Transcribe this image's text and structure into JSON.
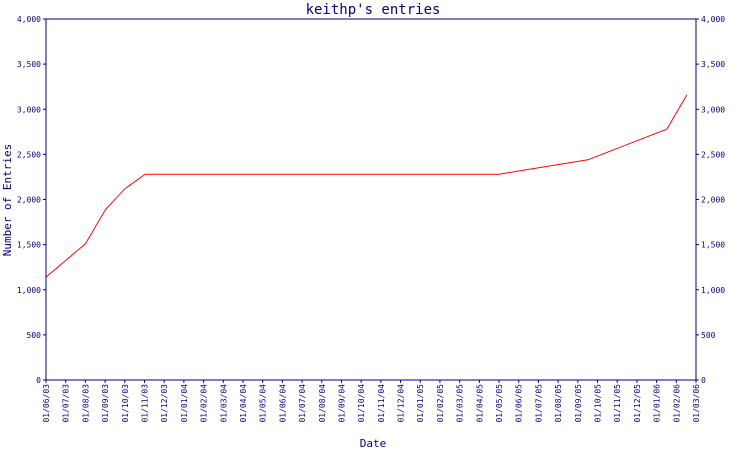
{
  "chart_data": {
    "type": "line",
    "title": "keithp's entries",
    "xlabel": "Date",
    "ylabel": "Number of Entries",
    "ylim": [
      0,
      4000
    ],
    "y_ticks": [
      0,
      500,
      1000,
      1500,
      2000,
      2500,
      3000,
      3500,
      4000
    ],
    "y_tick_labels": [
      "0",
      "500",
      "1,000",
      "1,500",
      "2,000",
      "2,500",
      "3,000",
      "3,500",
      "4,000"
    ],
    "x_tick_labels": [
      "01/06/03",
      "01/07/03",
      "01/08/03",
      "01/09/03",
      "01/10/03",
      "01/11/03",
      "01/12/03",
      "01/01/04",
      "01/02/04",
      "01/03/04",
      "01/04/04",
      "01/05/04",
      "01/06/04",
      "01/07/04",
      "01/08/04",
      "01/09/04",
      "01/10/04",
      "01/11/04",
      "01/12/04",
      "01/01/05",
      "01/02/05",
      "01/03/05",
      "01/04/05",
      "01/05/05",
      "01/06/05",
      "01/07/05",
      "01/08/05",
      "01/09/05",
      "01/10/05",
      "01/11/05",
      "01/12/05",
      "01/01/06",
      "01/02/06",
      "01/03/06"
    ],
    "x_domain": [
      "2003-06-01",
      "2006-03-01"
    ],
    "axis_color": "#000080",
    "series": [
      {
        "color": "#ff0000",
        "points": [
          {
            "date": "2003-06-01",
            "value": 1140
          },
          {
            "date": "2003-08-01",
            "value": 1510
          },
          {
            "date": "2003-09-01",
            "value": 1890
          },
          {
            "date": "2003-10-01",
            "value": 2120
          },
          {
            "date": "2003-11-01",
            "value": 2280
          },
          {
            "date": "2005-05-01",
            "value": 2280
          },
          {
            "date": "2005-09-15",
            "value": 2440
          },
          {
            "date": "2006-01-15",
            "value": 2780
          },
          {
            "date": "2006-02-15",
            "value": 3160
          }
        ]
      }
    ],
    "grid": false,
    "y_axis_both_sides": true
  }
}
